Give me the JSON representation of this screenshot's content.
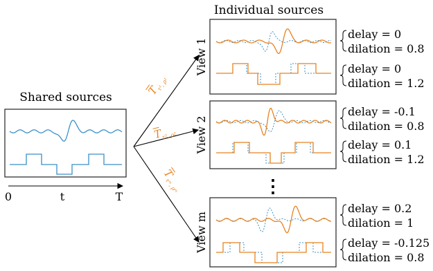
{
  "titles": {
    "shared": "Shared sources",
    "individual": "Individual sources"
  },
  "axis": {
    "start": "0",
    "mid": "t",
    "end": "T"
  },
  "views": [
    {
      "label": "View 1",
      "params": [
        {
          "delay": "delay = 0",
          "dilation": "dilation = 0.8"
        },
        {
          "delay": "delay = 0",
          "dilation": "dilation = 1.2"
        }
      ]
    },
    {
      "label": "View 2",
      "params": [
        {
          "delay": "delay = -0.1",
          "dilation": "dilation = 0.8"
        },
        {
          "delay": "delay = 0.1",
          "dilation": "dilation = 1.2"
        }
      ]
    },
    {
      "label": "View m",
      "params": [
        {
          "delay": "delay = 0.2",
          "dilation": "dilation = 1"
        },
        {
          "delay": "delay = -0.125",
          "dilation": "dilation = 0.8"
        }
      ]
    }
  ],
  "ellipsis": "⋮",
  "operators": [
    {
      "main": "T",
      "sub": "τ¹, ρ¹"
    },
    {
      "main": "T",
      "sub": "τ², ρ²"
    },
    {
      "main": "T",
      "sub": "τᵐ, ρᵐ"
    }
  ],
  "colors": {
    "shared": "#3A8FC8",
    "transformed": "#E8821E",
    "frame": "#222222"
  }
}
